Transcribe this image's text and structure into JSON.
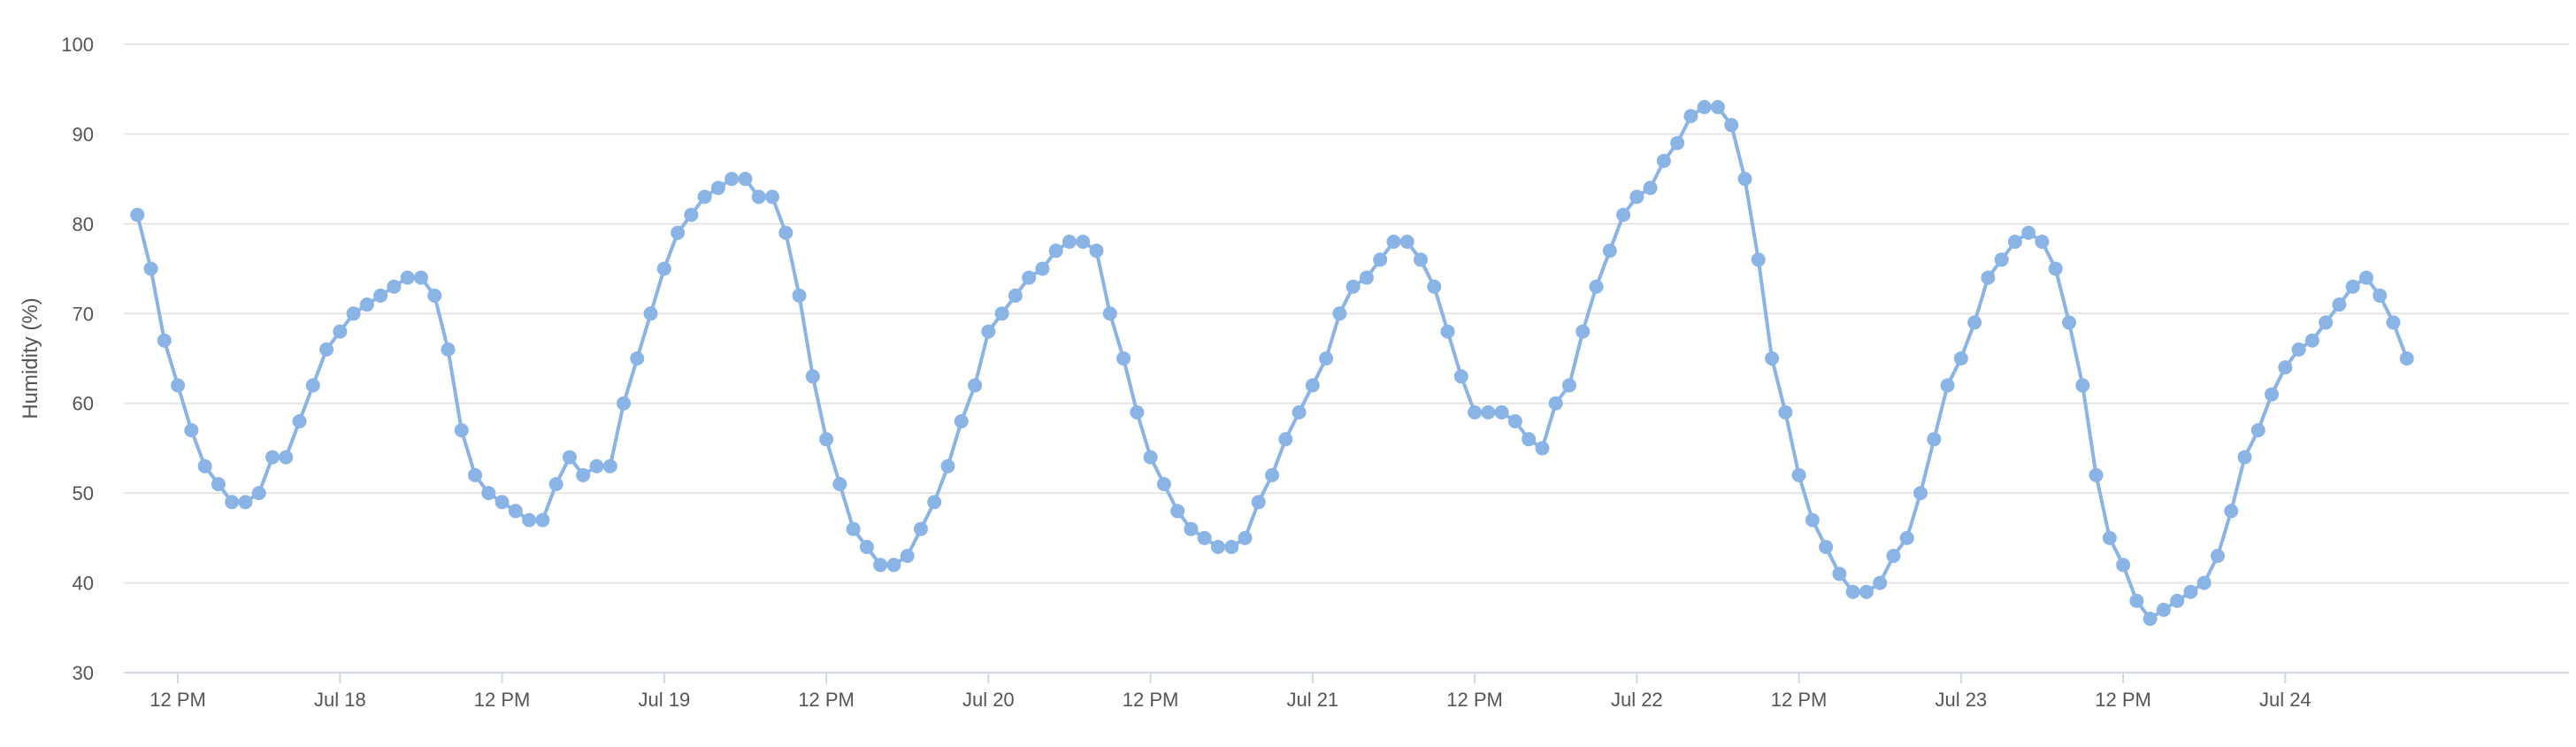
{
  "chart_data": {
    "type": "line",
    "title": "",
    "xlabel": "",
    "ylabel": "Humidity (%)",
    "ylim": [
      30,
      100
    ],
    "y_ticks": [
      30,
      40,
      50,
      60,
      70,
      80,
      90,
      100
    ],
    "x_range": [
      "2024-07-17 08:00",
      "2024-07-24 21:00"
    ],
    "x_ticks": [
      {
        "t": "2024-07-17 12:00",
        "label": "12 PM"
      },
      {
        "t": "2024-07-18 00:00",
        "label": "Jul 18"
      },
      {
        "t": "2024-07-18 12:00",
        "label": "12 PM"
      },
      {
        "t": "2024-07-19 00:00",
        "label": "Jul 19"
      },
      {
        "t": "2024-07-19 12:00",
        "label": "12 PM"
      },
      {
        "t": "2024-07-20 00:00",
        "label": "Jul 20"
      },
      {
        "t": "2024-07-20 12:00",
        "label": "12 PM"
      },
      {
        "t": "2024-07-21 00:00",
        "label": "Jul 21"
      },
      {
        "t": "2024-07-21 12:00",
        "label": "12 PM"
      },
      {
        "t": "2024-07-22 00:00",
        "label": "Jul 22"
      },
      {
        "t": "2024-07-22 12:00",
        "label": "12 PM"
      },
      {
        "t": "2024-07-23 00:00",
        "label": "Jul 23"
      },
      {
        "t": "2024-07-23 12:00",
        "label": "12 PM"
      },
      {
        "t": "2024-07-24 00:00",
        "label": "Jul 24"
      }
    ],
    "grid": true,
    "legend": "none",
    "series_color": "#8ab4e6",
    "series": [
      {
        "start": "2024-07-17 09:00",
        "interval_hours": 1,
        "values": [
          81,
          75,
          67,
          62,
          57,
          53,
          51,
          49,
          49,
          50,
          54,
          54,
          58,
          62,
          66,
          68,
          70,
          71,
          72,
          73,
          74,
          74,
          72,
          66,
          57,
          52,
          50,
          49,
          48,
          47,
          47,
          51,
          54,
          52,
          53,
          53,
          60,
          65,
          70,
          75,
          79,
          81,
          83,
          84,
          85,
          85,
          83,
          83,
          79,
          72,
          63,
          56,
          51,
          46,
          44,
          42,
          42,
          43,
          46,
          49,
          53,
          58,
          62,
          68,
          70,
          72,
          74,
          75,
          77,
          78,
          78,
          77,
          70,
          65,
          59,
          54,
          51,
          48,
          46,
          45,
          44,
          44,
          45,
          49,
          52,
          56,
          59,
          62,
          65,
          70,
          73,
          74,
          76,
          78,
          78,
          76,
          73,
          68,
          63,
          59,
          59,
          59,
          58,
          56,
          55,
          60,
          62,
          68,
          73,
          77,
          81,
          83,
          84,
          87,
          89,
          92,
          93,
          93,
          91,
          85,
          76,
          65,
          59,
          52,
          47,
          44,
          41,
          39,
          39,
          40,
          43,
          45,
          50,
          56,
          62,
          65,
          69,
          74,
          76,
          78,
          79,
          78,
          75,
          69,
          62,
          52,
          45,
          42,
          38,
          36,
          37,
          38,
          39,
          40,
          43,
          48,
          54,
          57,
          61,
          64,
          66,
          67,
          69,
          71,
          73,
          74,
          72,
          69,
          65
        ]
      }
    ]
  }
}
